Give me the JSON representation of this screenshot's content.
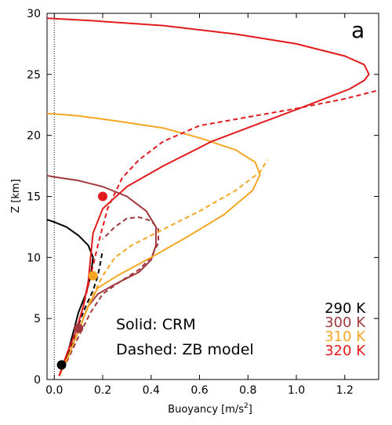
{
  "chart_data": {
    "type": "line",
    "panel_label": "a",
    "xlabel": "Buoyancy [m/s",
    "xlabel_sup": "2",
    "xlabel_close": "]",
    "ylabel": "Z [km]",
    "xlim": [
      -0.03,
      1.34
    ],
    "ylim": [
      0,
      30
    ],
    "xticks": [
      0.0,
      0.2,
      0.4,
      0.6,
      0.8,
      1.0,
      1.2
    ],
    "xtick_labels": [
      "0.0",
      "0.2",
      "0.4",
      "0.6",
      "0.8",
      "1.0",
      "1.2"
    ],
    "yticks": [
      0,
      5,
      10,
      15,
      20,
      25,
      30
    ],
    "ytick_labels": [
      "0",
      "5",
      "10",
      "15",
      "20",
      "25",
      "30"
    ],
    "zero_line": {
      "x": 0,
      "style": "dotted"
    },
    "annotations": [
      "Solid: CRM",
      "Dashed: ZB model"
    ],
    "series": [
      {
        "name": "290 K",
        "color": "#000000",
        "solid": [
          [
            0.02,
            0.3
          ],
          [
            0.04,
            1.2
          ],
          [
            0.06,
            2.5
          ],
          [
            0.08,
            4.0
          ],
          [
            0.1,
            5.5
          ],
          [
            0.13,
            7.0
          ],
          [
            0.15,
            8.5
          ],
          [
            0.16,
            10.0
          ],
          [
            0.14,
            11.0
          ],
          [
            0.1,
            11.8
          ],
          [
            0.05,
            12.5
          ],
          [
            0.0,
            12.9
          ],
          [
            -0.03,
            13.1
          ]
        ],
        "dashed": [
          [
            0.02,
            0.3
          ],
          [
            0.04,
            1.2
          ],
          [
            0.07,
            2.8
          ],
          [
            0.1,
            4.5
          ],
          [
            0.13,
            6.0
          ],
          [
            0.16,
            7.3
          ],
          [
            0.18,
            8.5
          ],
          [
            0.19,
            9.5
          ],
          [
            0.2,
            10.6
          ]
        ],
        "marker": [
          0.03,
          1.2
        ]
      },
      {
        "name": "300 K",
        "color": "#a0373c",
        "solid": [
          [
            0.02,
            0.3
          ],
          [
            0.05,
            1.5
          ],
          [
            0.08,
            3.0
          ],
          [
            0.11,
            4.5
          ],
          [
            0.14,
            6.0
          ],
          [
            0.18,
            7.0
          ],
          [
            0.25,
            7.8
          ],
          [
            0.35,
            8.8
          ],
          [
            0.4,
            9.8
          ],
          [
            0.42,
            11.0
          ],
          [
            0.42,
            12.5
          ],
          [
            0.38,
            13.8
          ],
          [
            0.3,
            15.0
          ],
          [
            0.2,
            15.8
          ],
          [
            0.1,
            16.3
          ],
          [
            0.0,
            16.6
          ],
          [
            -0.03,
            16.7
          ]
        ],
        "dashed": [
          [
            0.02,
            0.3
          ],
          [
            0.06,
            1.8
          ],
          [
            0.1,
            3.5
          ],
          [
            0.15,
            5.5
          ],
          [
            0.2,
            7.0
          ],
          [
            0.27,
            8.0
          ],
          [
            0.35,
            9.0
          ],
          [
            0.4,
            10.0
          ],
          [
            0.43,
            11.2
          ],
          [
            0.43,
            12.3
          ],
          [
            0.4,
            13.0
          ],
          [
            0.35,
            13.3
          ],
          [
            0.3,
            13.2
          ],
          [
            0.25,
            12.5
          ],
          [
            0.2,
            11.5
          ]
        ],
        "marker": [
          0.1,
          4.2
        ]
      },
      {
        "name": "310 K",
        "color": "#f5a623",
        "solid": [
          [
            0.02,
            0.3
          ],
          [
            0.06,
            2.0
          ],
          [
            0.1,
            4.0
          ],
          [
            0.14,
            6.0
          ],
          [
            0.18,
            7.5
          ],
          [
            0.26,
            8.5
          ],
          [
            0.4,
            10.0
          ],
          [
            0.55,
            11.7
          ],
          [
            0.7,
            13.5
          ],
          [
            0.82,
            15.5
          ],
          [
            0.85,
            16.8
          ],
          [
            0.83,
            17.8
          ],
          [
            0.75,
            18.8
          ],
          [
            0.6,
            19.8
          ],
          [
            0.45,
            20.6
          ],
          [
            0.25,
            21.2
          ],
          [
            0.1,
            21.6
          ],
          [
            -0.03,
            21.8
          ]
        ],
        "dashed": [
          [
            0.02,
            0.3
          ],
          [
            0.06,
            2.0
          ],
          [
            0.1,
            4.0
          ],
          [
            0.15,
            6.5
          ],
          [
            0.2,
            8.5
          ],
          [
            0.25,
            10.0
          ],
          [
            0.32,
            11.0
          ],
          [
            0.45,
            12.3
          ],
          [
            0.6,
            13.8
          ],
          [
            0.75,
            15.5
          ],
          [
            0.85,
            17.0
          ],
          [
            0.88,
            18.0
          ]
        ],
        "marker": [
          0.16,
          8.5
        ]
      },
      {
        "name": "320 K",
        "color": "#e31a1c",
        "solid": [
          [
            0.02,
            0.3
          ],
          [
            0.05,
            2.0
          ],
          [
            0.09,
            4.0
          ],
          [
            0.12,
            6.0
          ],
          [
            0.14,
            8.0
          ],
          [
            0.15,
            10.0
          ],
          [
            0.16,
            12.0
          ],
          [
            0.2,
            14.0
          ],
          [
            0.3,
            15.8
          ],
          [
            0.45,
            17.5
          ],
          [
            0.65,
            19.5
          ],
          [
            0.85,
            21.0
          ],
          [
            1.05,
            22.5
          ],
          [
            1.22,
            23.8
          ],
          [
            1.28,
            24.5
          ],
          [
            1.3,
            25.0
          ],
          [
            1.28,
            25.8
          ],
          [
            1.2,
            26.5
          ],
          [
            1.0,
            27.5
          ],
          [
            0.75,
            28.3
          ],
          [
            0.45,
            29.0
          ],
          [
            0.15,
            29.4
          ],
          [
            -0.03,
            29.6
          ]
        ],
        "dashed": [
          [
            0.02,
            0.3
          ],
          [
            0.05,
            2.0
          ],
          [
            0.09,
            4.0
          ],
          [
            0.12,
            6.0
          ],
          [
            0.15,
            8.5
          ],
          [
            0.18,
            11.0
          ],
          [
            0.22,
            14.0
          ],
          [
            0.28,
            16.5
          ],
          [
            0.35,
            18.0
          ],
          [
            0.45,
            19.5
          ],
          [
            0.6,
            20.8
          ],
          [
            0.8,
            21.5
          ],
          [
            1.0,
            22.2
          ],
          [
            1.2,
            23.0
          ],
          [
            1.34,
            23.7
          ]
        ],
        "marker": [
          0.2,
          15.0
        ]
      }
    ]
  }
}
